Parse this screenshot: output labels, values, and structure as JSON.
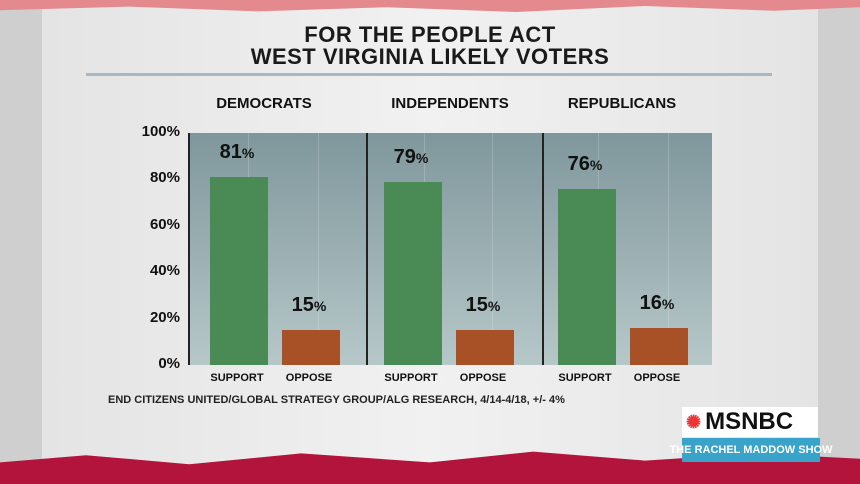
{
  "chart_data": {
    "type": "bar",
    "title": "FOR THE PEOPLE ACT",
    "subtitle": "WEST VIRGINIA LIKELY VOTERS",
    "groups": [
      "DEMOCRATS",
      "INDEPENDENTS",
      "REPUBLICANS"
    ],
    "categories": [
      "SUPPORT",
      "OPPOSE"
    ],
    "series": [
      {
        "group": "DEMOCRATS",
        "values": [
          81,
          15
        ]
      },
      {
        "group": "INDEPENDENTS",
        "values": [
          79,
          15
        ]
      },
      {
        "group": "REPUBLICANS",
        "values": [
          76,
          16
        ]
      }
    ],
    "yticks": [
      "100%",
      "80%",
      "60%",
      "40%",
      "20%",
      "0%"
    ],
    "ylim": [
      0,
      100
    ],
    "colors": {
      "SUPPORT": "#4a8a55",
      "OPPOSE": "#a85126"
    },
    "source": "END CITIZENS UNITED/GLOBAL STRATEGY GROUP/ALG RESEARCH, 4/14-4/18, +/- 4%"
  },
  "branding": {
    "network": "MSNBC",
    "show": "THE RACHEL MADDOW SHOW"
  }
}
